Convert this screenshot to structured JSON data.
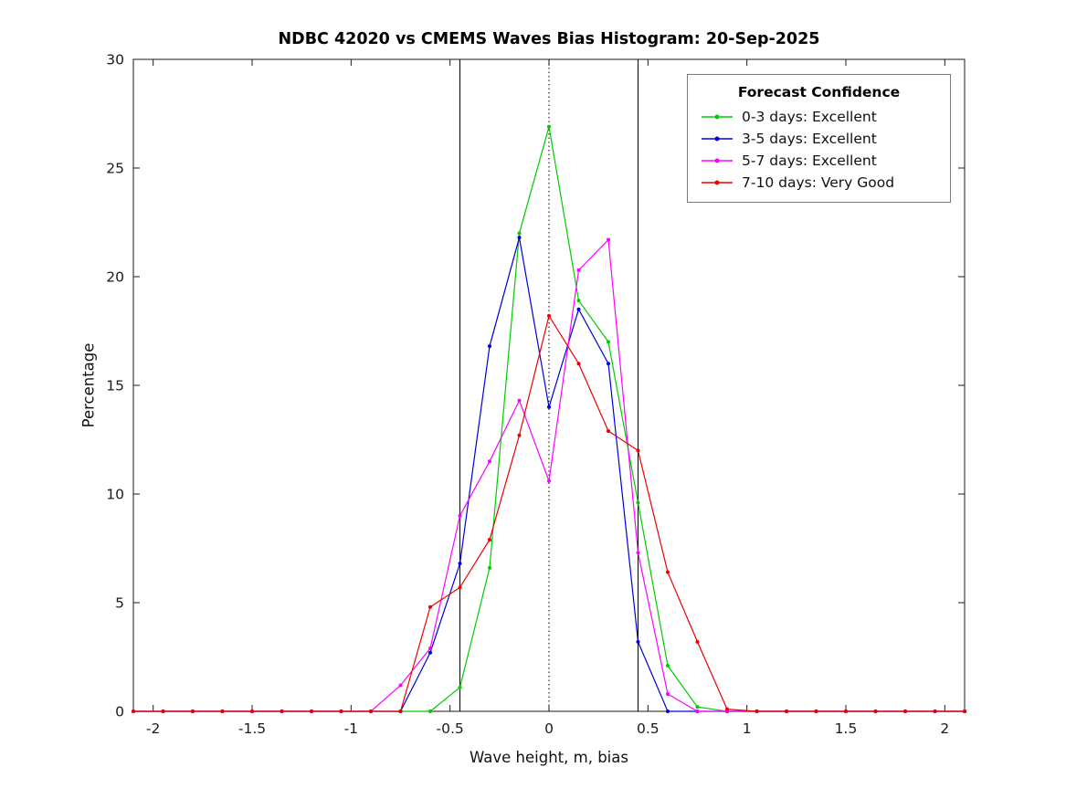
{
  "chart_data": {
    "type": "line",
    "title": "NDBC 42020 vs CMEMS Waves Bias Histogram: 20-Sep-2025",
    "xlabel": "Wave height, m, bias",
    "ylabel": "Percentage",
    "xlim": [
      -2.1,
      2.1
    ],
    "ylim": [
      0,
      30
    ],
    "xticks": [
      -2,
      -1.5,
      -1,
      -0.5,
      0,
      0.5,
      1,
      1.5,
      2
    ],
    "yticks": [
      0,
      5,
      10,
      15,
      20,
      25,
      30
    ],
    "grid": false,
    "legend": {
      "title": "Forecast Confidence",
      "position": "top-right"
    },
    "reference_lines": [
      {
        "x": -0.45,
        "style": "solid",
        "color": "#000000"
      },
      {
        "x": 0,
        "style": "dotted",
        "color": "#000000"
      },
      {
        "x": 0.45,
        "style": "solid",
        "color": "#000000"
      }
    ],
    "x": [
      -2.1,
      -1.95,
      -1.8,
      -1.65,
      -1.5,
      -1.35,
      -1.2,
      -1.05,
      -0.9,
      -0.75,
      -0.6,
      -0.45,
      -0.3,
      -0.15,
      0,
      0.15,
      0.3,
      0.45,
      0.6,
      0.75,
      0.9,
      1.05,
      1.2,
      1.35,
      1.5,
      1.65,
      1.8,
      1.95,
      2.1
    ],
    "series": [
      {
        "name": "0-3 days: Excellent",
        "color": "#00cc00",
        "values": [
          0,
          0,
          0,
          0,
          0,
          0,
          0,
          0,
          0,
          0,
          0,
          1.1,
          6.6,
          22.0,
          26.9,
          18.9,
          17.0,
          9.6,
          2.1,
          0.2,
          0,
          0,
          0,
          0,
          0,
          0,
          0,
          0,
          0
        ]
      },
      {
        "name": "3-5 days: Excellent",
        "color": "#0000dd",
        "values": [
          0,
          0,
          0,
          0,
          0,
          0,
          0,
          0,
          0,
          0,
          2.7,
          6.8,
          16.8,
          21.8,
          14.0,
          18.5,
          16.0,
          3.2,
          0,
          0,
          0,
          0,
          0,
          0,
          0,
          0,
          0,
          0,
          0
        ]
      },
      {
        "name": "5-7 days: Excellent",
        "color": "#ff00ff",
        "values": [
          0,
          0,
          0,
          0,
          0,
          0,
          0,
          0,
          0,
          1.2,
          2.9,
          9.0,
          11.5,
          14.3,
          10.6,
          20.3,
          21.7,
          7.3,
          0.8,
          0,
          0,
          0,
          0,
          0,
          0,
          0,
          0,
          0,
          0
        ]
      },
      {
        "name": "7-10 days: Very Good",
        "color": "#ee0000",
        "values": [
          0,
          0,
          0,
          0,
          0,
          0,
          0,
          0,
          0,
          0,
          4.8,
          5.7,
          7.9,
          12.7,
          18.2,
          16.0,
          12.9,
          12.0,
          6.4,
          3.2,
          0.1,
          0,
          0,
          0,
          0,
          0,
          0,
          0,
          0
        ]
      }
    ]
  }
}
